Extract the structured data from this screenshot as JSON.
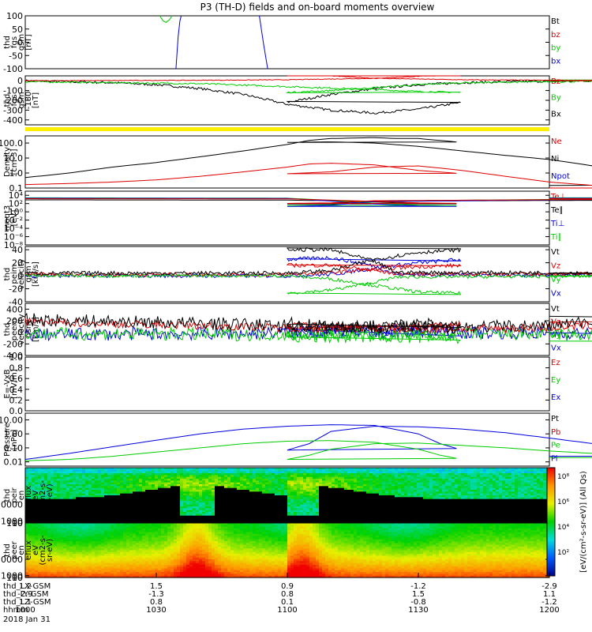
{
  "title": "P3 (TH-D) fields and on-board moments overview",
  "colors": {
    "black": "#000000",
    "red": "#dd0000",
    "green": "#00cc00",
    "blue": "#0000dd",
    "yellow": "#ffee00"
  },
  "chart_data": [
    {
      "id": "p1",
      "type": "line",
      "ylabel": [
        "thd",
        "fgs",
        "gsm",
        "[nT]"
      ],
      "ylim": [
        -100,
        100
      ],
      "ticks": [
        "100",
        "50",
        "0",
        "-50",
        "-100"
      ],
      "legend": [
        {
          "name": "Bt",
          "color": "black"
        },
        {
          "name": "bz",
          "color": "red"
        },
        {
          "name": "by",
          "color": "green"
        },
        {
          "name": "bx",
          "color": "blue"
        }
      ],
      "series": [
        {
          "name": "by",
          "color": "green",
          "x": [
            1030.8,
            1031.5,
            1032.2,
            1033,
            1033.6
          ],
          "y": [
            100,
            82,
            75,
            85,
            100
          ]
        },
        {
          "name": "bx",
          "color": "blue",
          "x": [
            1034.5,
            1035,
            1035.4,
            1035.7
          ],
          "y": [
            -100,
            20,
            80,
            100
          ]
        },
        {
          "name": "bx",
          "color": "blue",
          "x": [
            1053.6,
            1054.5,
            1055.5
          ],
          "y": [
            100,
            0,
            -100
          ]
        }
      ]
    },
    {
      "id": "p2",
      "type": "line",
      "ylabel": [
        "thd",
        "fgs",
        "gsm",
        "-180",
        "[nT]"
      ],
      "ylim": [
        -450,
        50
      ],
      "ticks": [
        "0",
        "-100",
        "-200",
        "-300",
        "-400"
      ],
      "legend": [
        {
          "name": "Bz",
          "color": "red"
        },
        {
          "name": "By",
          "color": "green"
        },
        {
          "name": "Bx",
          "color": "black"
        }
      ],
      "series": [
        {
          "name": "Bx",
          "color": "black",
          "noise": 12,
          "x": [
            1000,
            1010,
            1020,
            1030,
            1040,
            1050,
            1055,
            1060,
            1070,
            1080,
            1090,
            1100,
            1110,
            1120,
            1130,
            1140,
            1150,
            1160,
            1170,
            1180,
            1190,
            1200
          ],
          "y": [
            0,
            -10,
            -20,
            -40,
            -80,
            -140,
            -190,
            -240,
            -300,
            -330,
            -290,
            -220,
            -140,
            -80,
            -40,
            -20,
            -10,
            -5,
            0,
            0,
            0,
            5
          ]
        },
        {
          "name": "By",
          "color": "green",
          "noise": 8,
          "x": [
            1000,
            1020,
            1040,
            1060,
            1080,
            1090,
            1100,
            1110,
            1120,
            1130,
            1140,
            1160,
            1180,
            1200
          ],
          "y": [
            -10,
            -20,
            -30,
            -60,
            -90,
            -110,
            -120,
            -100,
            -70,
            -40,
            -20,
            -10,
            -5,
            0
          ]
        },
        {
          "name": "Bz",
          "color": "red",
          "noise": 3,
          "x": [
            1000,
            1040,
            1060,
            1080,
            1090,
            1100,
            1110,
            1120,
            1140,
            1160,
            1180,
            1200
          ],
          "y": [
            0,
            5,
            10,
            25,
            45,
            60,
            50,
            25,
            10,
            5,
            0,
            0
          ]
        }
      ]
    },
    {
      "id": "p3",
      "type": "line",
      "log": true,
      "ylabel": [
        "Density",
        "[cm-3]"
      ],
      "ylim": [
        0.1,
        300
      ],
      "ticks": [
        "100.0",
        "10.0",
        "1.0",
        "0.1"
      ],
      "tickValues": [
        100,
        10,
        1,
        0.1
      ],
      "legend": [
        {
          "name": "Ne",
          "color": "red"
        },
        {
          "name": "Ni",
          "color": "black"
        },
        {
          "name": "Npot",
          "color": "blue"
        }
      ],
      "series": [
        {
          "name": "Ni",
          "color": "black",
          "x": [
            1000,
            1005,
            1010,
            1020,
            1030,
            1040,
            1050,
            1060,
            1065,
            1070,
            1080,
            1085,
            1090,
            1100,
            1110,
            1120,
            1130,
            1140,
            1150,
            1160,
            1170,
            1180,
            1190,
            1200
          ],
          "y": [
            0.5,
            0.7,
            1.0,
            2.5,
            5,
            12,
            30,
            80,
            150,
            200,
            230,
            200,
            200,
            110,
            120,
            100,
            60,
            30,
            15,
            8,
            3,
            0.8,
            0.3,
            0.15
          ]
        },
        {
          "name": "Ne",
          "color": "red",
          "x": [
            1000,
            1010,
            1020,
            1030,
            1040,
            1050,
            1060,
            1065,
            1070,
            1080,
            1090,
            1100,
            1110,
            1120,
            1130,
            1140,
            1150,
            1160,
            1170,
            1180,
            1190,
            1200
          ],
          "y": [
            0.17,
            0.2,
            0.25,
            0.35,
            0.6,
            1.2,
            2.5,
            4,
            4.5,
            3.5,
            1.5,
            0.9,
            1.2,
            2.5,
            3,
            1.5,
            0.6,
            0.25,
            0.15,
            0.12,
            0.11,
            0.1
          ]
        }
      ]
    },
    {
      "id": "p4",
      "type": "line",
      "log": true,
      "ylabel": [
        "moqt3",
        "[eV]"
      ],
      "ylim": [
        1e-08,
        100000.0
      ],
      "ticks": [
        "10⁴",
        "10²",
        "10⁰",
        "10⁻²",
        "10⁻⁴",
        "10⁻⁶",
        "10⁻⁸"
      ],
      "tickValues": [
        10000.0,
        100.0,
        1.0,
        0.01,
        0.0001,
        1e-06,
        1e-08
      ],
      "legend": [
        {
          "name": "Te⊥",
          "color": "red"
        },
        {
          "name": "Te∥",
          "color": "black"
        },
        {
          "name": "Ti⊥",
          "color": "blue"
        },
        {
          "name": "Ti∥",
          "color": "green"
        }
      ],
      "series": [
        {
          "name": "Te∥",
          "color": "black",
          "x": [
            1000,
            1060,
            1070,
            1080,
            1090,
            1100,
            1110,
            1120,
            1200
          ],
          "y": [
            800,
            700,
            500,
            250,
            100,
            80,
            100,
            400,
            800
          ]
        },
        {
          "name": "Ti∥",
          "color": "green",
          "x": [
            1000,
            1060,
            1070,
            1080,
            1090,
            1100,
            1110,
            1120,
            1200
          ],
          "y": [
            2500,
            2000,
            600,
            120,
            40,
            30,
            50,
            400,
            2500
          ]
        },
        {
          "name": "Ti⊥",
          "color": "blue",
          "x": [
            1000,
            1060,
            1070,
            1080,
            1090,
            1100,
            1110,
            1120,
            1200
          ],
          "y": [
            2000,
            1800,
            400,
            80,
            25,
            20,
            40,
            300,
            2000
          ]
        },
        {
          "name": "Te⊥",
          "color": "red",
          "x": [
            1000,
            1060,
            1070,
            1080,
            1090,
            1100,
            1110,
            1120,
            1200
          ],
          "y": [
            1500,
            1400,
            700,
            350,
            150,
            110,
            150,
            500,
            1500
          ]
        }
      ]
    },
    {
      "id": "p5",
      "type": "line",
      "ylabel": [
        "thd",
        "peim",
        "velocity",
        "gsm",
        "[km/s]"
      ],
      "ylim": [
        -40,
        45
      ],
      "ticks": [
        "40",
        "20",
        "0",
        "-20",
        "-40"
      ],
      "legend": [
        {
          "name": "Vt",
          "color": "black"
        },
        {
          "name": "Vz",
          "color": "red"
        },
        {
          "name": "Vy",
          "color": "green"
        },
        {
          "name": "Vx",
          "color": "blue"
        }
      ],
      "series": [
        {
          "name": "Vx",
          "color": "blue",
          "noise": 3,
          "x": [
            1000,
            1060,
            1070,
            1080,
            1090,
            1100,
            1110,
            1120,
            1125,
            1200
          ],
          "y": [
            0,
            0,
            2,
            12,
            20,
            25,
            28,
            15,
            2,
            0
          ]
        },
        {
          "name": "Vz",
          "color": "red",
          "noise": 3,
          "x": [
            1000,
            1060,
            1070,
            1080,
            1090,
            1100,
            1110,
            1120,
            1125,
            1200
          ],
          "y": [
            2,
            2,
            5,
            10,
            14,
            16,
            16,
            8,
            3,
            2
          ]
        },
        {
          "name": "Vy",
          "color": "green",
          "noise": 2.5,
          "x": [
            1000,
            1060,
            1070,
            1080,
            1090,
            1100,
            1110,
            1120,
            1125,
            1200
          ],
          "y": [
            0,
            0,
            -5,
            -15,
            -25,
            -27,
            -22,
            -10,
            -2,
            0
          ]
        },
        {
          "name": "Vt",
          "color": "black",
          "noise": 3,
          "x": [
            1000,
            1060,
            1070,
            1080,
            1090,
            1100,
            1110,
            1120,
            1125,
            1200
          ],
          "y": [
            4,
            4,
            8,
            25,
            36,
            40,
            40,
            22,
            5,
            4
          ]
        }
      ]
    },
    {
      "id": "p6",
      "type": "line",
      "ylabel": [
        "thd",
        "peem",
        "velocity",
        "gsm",
        "[km/s]"
      ],
      "ylim": [
        -400,
        500
      ],
      "ticks": [
        "400",
        "200",
        "0",
        "-200",
        "-400"
      ],
      "legend": [
        {
          "name": "Vt",
          "color": "black"
        },
        {
          "name": "Vz",
          "color": "red"
        },
        {
          "name": "Vy",
          "color": "green"
        },
        {
          "name": "Vx",
          "color": "blue"
        }
      ],
      "series": [
        {
          "name": "Vx",
          "color": "blue",
          "noise": 110,
          "x": [
            1000,
            1050,
            1070,
            1100,
            1130,
            1160,
            1180,
            1200
          ],
          "y": [
            -40,
            -20,
            0,
            20,
            0,
            -10,
            -60,
            -80
          ]
        },
        {
          "name": "Vy",
          "color": "green",
          "noise": 110,
          "x": [
            1000,
            1050,
            1070,
            1090,
            1100,
            1110,
            1130,
            1160,
            1180,
            1200
          ],
          "y": [
            -20,
            -40,
            -30,
            -80,
            -90,
            -80,
            -40,
            -30,
            -60,
            -80
          ]
        },
        {
          "name": "Vz",
          "color": "red",
          "noise": 70,
          "x": [
            1000,
            1050,
            1070,
            1100,
            1130,
            1160,
            1180,
            1200
          ],
          "y": [
            180,
            100,
            60,
            120,
            50,
            80,
            150,
            180
          ]
        },
        {
          "name": "Vt",
          "color": "black",
          "noise": 110,
          "x": [
            1000,
            1050,
            1070,
            1100,
            1130,
            1160,
            1180,
            1200
          ],
          "y": [
            220,
            140,
            80,
            150,
            80,
            120,
            250,
            300
          ]
        }
      ]
    },
    {
      "id": "p7",
      "type": "line",
      "ylabel": [
        "E=-VxB",
        "[mV/m]"
      ],
      "ylim": [
        0,
        1
      ],
      "ticks": [
        "1.0",
        "0.8",
        "0.6",
        "0.4",
        "0.2",
        "0.0"
      ],
      "legend": [
        {
          "name": "Ez",
          "color": "red"
        },
        {
          "name": "Ey",
          "color": "green"
        },
        {
          "name": "Ex",
          "color": "blue"
        }
      ],
      "series": []
    },
    {
      "id": "p8",
      "type": "line",
      "log": true,
      "ylabel": [
        "Pressure",
        "[nPa]"
      ],
      "ylim": [
        0.005,
        30
      ],
      "ticks": [
        "10.00",
        "1.00",
        "0.10",
        "0.01"
      ],
      "tickValues": [
        10,
        1,
        0.1,
        0.01
      ],
      "legend": [
        {
          "name": "Pt",
          "color": "black"
        },
        {
          "name": "Pb",
          "color": "red"
        },
        {
          "name": "Pe",
          "color": "green"
        },
        {
          "name": "Pi",
          "color": "blue"
        }
      ],
      "series": [
        {
          "name": "Pi",
          "color": "blue",
          "x": [
            1000,
            1010,
            1020,
            1030,
            1040,
            1050,
            1060,
            1070,
            1080,
            1090,
            1095,
            1100,
            1105,
            1110,
            1120,
            1130,
            1140,
            1150,
            1160,
            1170,
            1180,
            1190,
            1200
          ],
          "y": [
            0.015,
            0.04,
            0.12,
            0.35,
            1.0,
            2.2,
            3.5,
            4.5,
            4.0,
            1.0,
            0.2,
            0.07,
            0.2,
            1.5,
            3.5,
            3.2,
            2.2,
            1.2,
            0.5,
            0.2,
            0.08,
            0.04,
            0.025
          ]
        },
        {
          "name": "Pe",
          "color": "green",
          "x": [
            1000,
            1010,
            1020,
            1030,
            1040,
            1050,
            1060,
            1070,
            1080,
            1090,
            1095,
            1100,
            1105,
            1110,
            1120,
            1130,
            1140,
            1150,
            1160,
            1170,
            1180,
            1190,
            1200
          ],
          "y": [
            0.012,
            0.015,
            0.025,
            0.05,
            0.1,
            0.2,
            0.3,
            0.33,
            0.25,
            0.08,
            0.03,
            0.015,
            0.03,
            0.08,
            0.2,
            0.22,
            0.15,
            0.1,
            0.06,
            0.04,
            0.03,
            0.025,
            0.02
          ]
        }
      ]
    },
    {
      "id": "p9",
      "type": "heatmap",
      "ylabel": [
        "thd",
        "peir",
        "en",
        "eflux",
        "eV",
        "(cm2-s-",
        "sr-eV)"
      ],
      "ylim": [
        5,
        30000
      ],
      "ticks": [
        "10000",
        "1000",
        "100",
        "10"
      ],
      "tickValues": [
        10000,
        1000,
        100,
        10
      ]
    },
    {
      "id": "p10",
      "type": "heatmap",
      "ylabel": [
        "thd",
        "peer",
        "en",
        "eflux",
        "eV",
        "(cm2-s-",
        "sr-eV)"
      ],
      "ylim": [
        5,
        30000
      ],
      "ticks": [
        "10000",
        "1000",
        "100",
        "10"
      ],
      "tickValues": [
        10000,
        1000,
        100,
        10
      ]
    }
  ],
  "colorbar": {
    "ticks": [
      "10⁸",
      "10⁶",
      "10⁴",
      "10²"
    ],
    "label": "[eV/(cm²-s-sr-eV)] (All Qs)"
  },
  "xaxis": {
    "rows": [
      {
        "label": "thd_LX-GSM",
        "values": [
          "1.2",
          "1.5",
          "0.9",
          "-1.2",
          "-2.9"
        ]
      },
      {
        "label": "thd_LY-GSM",
        "values": [
          "-2.9",
          "-1.3",
          "0.8",
          "1.5",
          "1.1"
        ]
      },
      {
        "label": "thd_LZ-GSM",
        "values": [
          "1.1",
          "0.8",
          "0.1",
          "-0.8",
          "-1.2"
        ]
      },
      {
        "label": "hhmm",
        "values": [
          "1000",
          "1030",
          "1100",
          "1130",
          "1200"
        ]
      }
    ],
    "date": "2018 Jan 31"
  }
}
